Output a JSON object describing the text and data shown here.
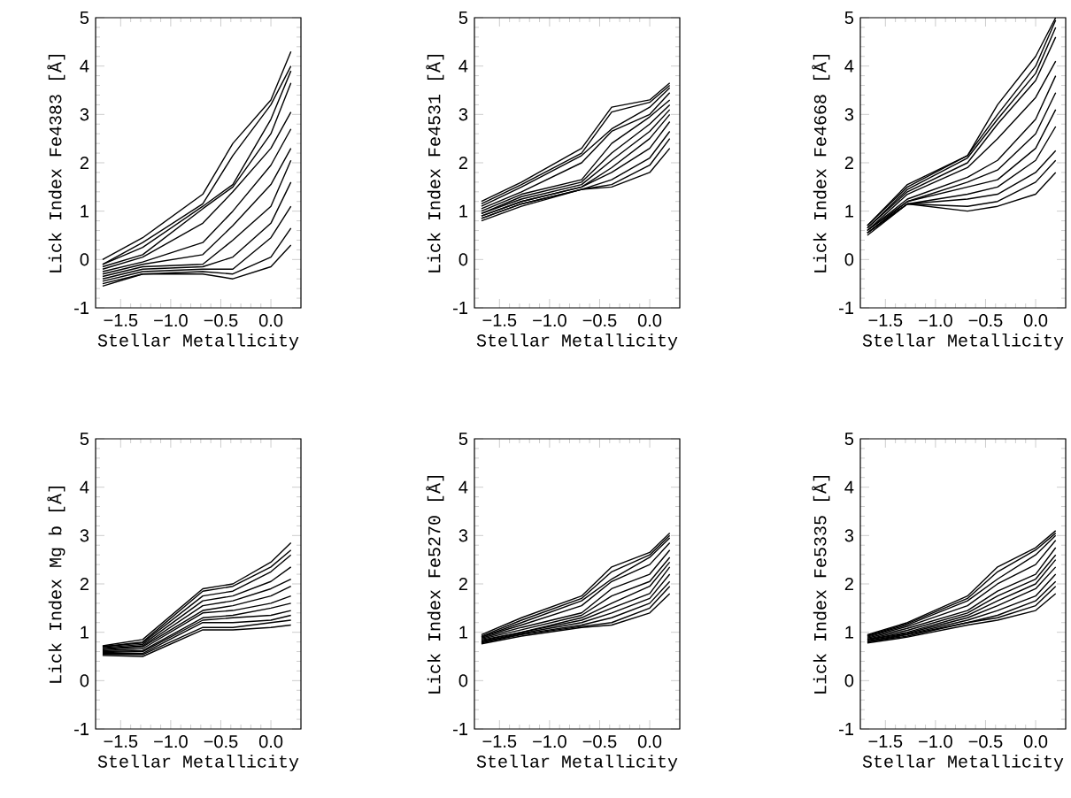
{
  "chart_data": [
    {
      "type": "line",
      "xlabel": "Stellar Metallicity",
      "ylabel": "Lick Index Fe4383 [Å]",
      "x": [
        -1.68,
        -1.28,
        -0.68,
        -0.38,
        0.0,
        0.2
      ],
      "xlim": [
        -1.75,
        0.3
      ],
      "ylim": [
        -1,
        5
      ],
      "xticks": [
        {
          "value": -1.5,
          "label": "−1.5"
        },
        {
          "value": -1.0,
          "label": "−1.0"
        },
        {
          "value": -0.5,
          "label": "−0.5"
        },
        {
          "value": 0.0,
          "label": "0.0"
        }
      ],
      "yticks": [
        -1,
        0,
        1,
        2,
        3,
        4,
        5
      ],
      "marker": "none",
      "line_style": "solid",
      "series": [
        {
          "color": "#000000",
          "values": [
            0.0,
            0.45,
            1.35,
            2.4,
            3.3,
            4.3
          ]
        },
        {
          "color": "#000000",
          "values": [
            -0.1,
            0.35,
            1.15,
            2.15,
            3.2,
            4.0
          ]
        },
        {
          "color": "#000000",
          "values": [
            -0.1,
            0.25,
            1.1,
            1.55,
            2.9,
            3.9
          ]
        },
        {
          "color": "#000000",
          "values": [
            -0.15,
            0.1,
            1.05,
            1.5,
            2.6,
            3.65
          ]
        },
        {
          "color": "#000000",
          "values": [
            -0.2,
            0.05,
            0.75,
            1.4,
            2.3,
            3.05
          ]
        },
        {
          "color": "#000000",
          "values": [
            -0.25,
            -0.05,
            0.35,
            1.0,
            1.95,
            2.7
          ]
        },
        {
          "color": "#000000",
          "values": [
            -0.3,
            -0.1,
            0.1,
            0.7,
            1.55,
            2.3
          ]
        },
        {
          "color": "#000000",
          "values": [
            -0.35,
            -0.15,
            -0.1,
            0.4,
            1.1,
            2.05
          ]
        },
        {
          "color": "#000000",
          "values": [
            -0.4,
            -0.2,
            -0.15,
            0.05,
            0.75,
            1.6
          ]
        },
        {
          "color": "#000000",
          "values": [
            -0.45,
            -0.25,
            -0.2,
            -0.2,
            0.45,
            1.1
          ]
        },
        {
          "color": "#000000",
          "values": [
            -0.5,
            -0.3,
            -0.25,
            -0.3,
            0.05,
            0.65
          ]
        },
        {
          "color": "#000000",
          "values": [
            -0.55,
            -0.3,
            -0.3,
            -0.4,
            -0.15,
            0.3
          ]
        }
      ]
    },
    {
      "type": "line",
      "xlabel": "Stellar Metallicity",
      "ylabel": "Lick Index Fe4531 [Å]",
      "x": [
        -1.68,
        -1.28,
        -0.68,
        -0.38,
        0.0,
        0.2
      ],
      "xlim": [
        -1.75,
        0.3
      ],
      "ylim": [
        -1,
        5
      ],
      "xticks": [
        {
          "value": -1.5,
          "label": "−1.5"
        },
        {
          "value": -1.0,
          "label": "−1.0"
        },
        {
          "value": -0.5,
          "label": "−0.5"
        },
        {
          "value": 0.0,
          "label": "0.0"
        }
      ],
      "yticks": [
        -1,
        0,
        1,
        2,
        3,
        4,
        5
      ],
      "marker": "none",
      "line_style": "solid",
      "series": [
        {
          "color": "#000000",
          "values": [
            1.2,
            1.6,
            2.3,
            3.15,
            3.3,
            3.65
          ]
        },
        {
          "color": "#000000",
          "values": [
            1.15,
            1.55,
            2.2,
            3.05,
            3.25,
            3.6
          ]
        },
        {
          "color": "#000000",
          "values": [
            1.1,
            1.5,
            2.15,
            2.7,
            3.15,
            3.55
          ]
        },
        {
          "color": "#000000",
          "values": [
            1.05,
            1.4,
            2.0,
            2.65,
            3.0,
            3.45
          ]
        },
        {
          "color": "#000000",
          "values": [
            1.0,
            1.35,
            1.65,
            2.4,
            2.95,
            3.3
          ]
        },
        {
          "color": "#000000",
          "values": [
            0.95,
            1.3,
            1.6,
            2.2,
            2.8,
            3.2
          ]
        },
        {
          "color": "#000000",
          "values": [
            0.95,
            1.25,
            1.55,
            2.05,
            2.65,
            3.1
          ]
        },
        {
          "color": "#000000",
          "values": [
            0.9,
            1.2,
            1.5,
            1.9,
            2.5,
            3.0
          ]
        },
        {
          "color": "#000000",
          "values": [
            0.9,
            1.2,
            1.5,
            1.8,
            2.3,
            2.85
          ]
        },
        {
          "color": "#000000",
          "values": [
            0.85,
            1.15,
            1.45,
            1.65,
            2.1,
            2.65
          ]
        },
        {
          "color": "#000000",
          "values": [
            0.85,
            1.15,
            1.45,
            1.55,
            1.95,
            2.5
          ]
        },
        {
          "color": "#000000",
          "values": [
            0.8,
            1.1,
            1.45,
            1.5,
            1.8,
            2.3
          ]
        }
      ]
    },
    {
      "type": "line",
      "xlabel": "Stellar Metallicity",
      "ylabel": "Lick Index Fe4668 [Å]",
      "x": [
        -1.68,
        -1.28,
        -0.68,
        -0.38,
        0.0,
        0.2
      ],
      "xlim": [
        -1.75,
        0.3
      ],
      "ylim": [
        -1,
        5
      ],
      "xticks": [
        {
          "value": -1.5,
          "label": "−1.5"
        },
        {
          "value": -1.0,
          "label": "−1.0"
        },
        {
          "value": -0.5,
          "label": "−0.5"
        },
        {
          "value": 0.0,
          "label": "0.0"
        }
      ],
      "yticks": [
        -1,
        0,
        1,
        2,
        3,
        4,
        5
      ],
      "marker": "none",
      "line_style": "solid",
      "series": [
        {
          "color": "#000000",
          "values": [
            0.7,
            1.55,
            2.15,
            3.2,
            4.2,
            5.0
          ]
        },
        {
          "color": "#000000",
          "values": [
            0.7,
            1.5,
            2.15,
            3.0,
            4.0,
            4.95
          ]
        },
        {
          "color": "#000000",
          "values": [
            0.65,
            1.45,
            2.1,
            2.9,
            3.85,
            4.8
          ]
        },
        {
          "color": "#000000",
          "values": [
            0.65,
            1.4,
            2.0,
            2.8,
            3.7,
            4.6
          ]
        },
        {
          "color": "#000000",
          "values": [
            0.6,
            1.35,
            1.9,
            2.5,
            3.35,
            4.1
          ]
        },
        {
          "color": "#000000",
          "values": [
            0.6,
            1.25,
            1.7,
            2.05,
            2.9,
            3.8
          ]
        },
        {
          "color": "#000000",
          "values": [
            0.6,
            1.2,
            1.6,
            1.85,
            2.6,
            3.45
          ]
        },
        {
          "color": "#000000",
          "values": [
            0.55,
            1.2,
            1.5,
            1.65,
            2.3,
            3.1
          ]
        },
        {
          "color": "#000000",
          "values": [
            0.55,
            1.15,
            1.35,
            1.5,
            2.05,
            2.75
          ]
        },
        {
          "color": "#000000",
          "values": [
            0.55,
            1.15,
            1.25,
            1.35,
            1.8,
            2.25
          ]
        },
        {
          "color": "#000000",
          "values": [
            0.55,
            1.15,
            1.1,
            1.2,
            1.6,
            2.05
          ]
        },
        {
          "color": "#000000",
          "values": [
            0.5,
            1.15,
            1.0,
            1.1,
            1.35,
            1.8
          ]
        }
      ]
    },
    {
      "type": "line",
      "xlabel": "Stellar Metallicity",
      "ylabel": "Lick Index Mg b [Å]",
      "x": [
        -1.68,
        -1.28,
        -0.68,
        -0.38,
        0.0,
        0.2
      ],
      "xlim": [
        -1.75,
        0.3
      ],
      "ylim": [
        -1,
        5
      ],
      "xticks": [
        {
          "value": -1.5,
          "label": "−1.5"
        },
        {
          "value": -1.0,
          "label": "−1.0"
        },
        {
          "value": -0.5,
          "label": "−0.5"
        },
        {
          "value": 0.0,
          "label": "0.0"
        }
      ],
      "yticks": [
        -1,
        0,
        1,
        2,
        3,
        4,
        5
      ],
      "marker": "none",
      "line_style": "solid",
      "series": [
        {
          "color": "#000000",
          "values": [
            0.72,
            0.85,
            1.9,
            2.0,
            2.45,
            2.85
          ]
        },
        {
          "color": "#000000",
          "values": [
            0.7,
            0.8,
            1.85,
            1.95,
            2.35,
            2.7
          ]
        },
        {
          "color": "#000000",
          "values": [
            0.7,
            0.78,
            1.75,
            1.85,
            2.25,
            2.6
          ]
        },
        {
          "color": "#000000",
          "values": [
            0.68,
            0.75,
            1.65,
            1.75,
            2.05,
            2.35
          ]
        },
        {
          "color": "#000000",
          "values": [
            0.66,
            0.72,
            1.55,
            1.65,
            1.9,
            2.1
          ]
        },
        {
          "color": "#000000",
          "values": [
            0.64,
            0.7,
            1.45,
            1.55,
            1.75,
            1.95
          ]
        },
        {
          "color": "#000000",
          "values": [
            0.62,
            0.66,
            1.4,
            1.45,
            1.6,
            1.75
          ]
        },
        {
          "color": "#000000",
          "values": [
            0.6,
            0.62,
            1.3,
            1.35,
            1.5,
            1.6
          ]
        },
        {
          "color": "#000000",
          "values": [
            0.58,
            0.6,
            1.25,
            1.3,
            1.35,
            1.45
          ]
        },
        {
          "color": "#000000",
          "values": [
            0.56,
            0.56,
            1.2,
            1.2,
            1.25,
            1.35
          ]
        },
        {
          "color": "#000000",
          "values": [
            0.54,
            0.54,
            1.1,
            1.1,
            1.2,
            1.25
          ]
        },
        {
          "color": "#000000",
          "values": [
            0.52,
            0.5,
            1.05,
            1.05,
            1.1,
            1.15
          ]
        }
      ]
    },
    {
      "type": "line",
      "xlabel": "Stellar Metallicity",
      "ylabel": "Lick Index Fe5270 [Å]",
      "x": [
        -1.68,
        -1.28,
        -0.68,
        -0.38,
        0.0,
        0.2
      ],
      "xlim": [
        -1.75,
        0.3
      ],
      "ylim": [
        -1,
        5
      ],
      "xticks": [
        {
          "value": -1.5,
          "label": "−1.5"
        },
        {
          "value": -1.0,
          "label": "−1.0"
        },
        {
          "value": -0.5,
          "label": "−0.5"
        },
        {
          "value": 0.0,
          "label": "0.0"
        }
      ],
      "yticks": [
        -1,
        0,
        1,
        2,
        3,
        4,
        5
      ],
      "marker": "none",
      "line_style": "solid",
      "series": [
        {
          "color": "#000000",
          "values": [
            0.95,
            1.3,
            1.75,
            2.35,
            2.65,
            3.05
          ]
        },
        {
          "color": "#000000",
          "values": [
            0.92,
            1.25,
            1.7,
            2.25,
            2.6,
            3.0
          ]
        },
        {
          "color": "#000000",
          "values": [
            0.9,
            1.2,
            1.65,
            2.1,
            2.55,
            2.95
          ]
        },
        {
          "color": "#000000",
          "values": [
            0.9,
            1.15,
            1.55,
            2.05,
            2.4,
            2.85
          ]
        },
        {
          "color": "#000000",
          "values": [
            0.88,
            1.1,
            1.4,
            1.9,
            2.2,
            2.7
          ]
        },
        {
          "color": "#000000",
          "values": [
            0.86,
            1.05,
            1.35,
            1.75,
            2.05,
            2.55
          ]
        },
        {
          "color": "#000000",
          "values": [
            0.84,
            1.0,
            1.3,
            1.6,
            1.95,
            2.45
          ]
        },
        {
          "color": "#000000",
          "values": [
            0.82,
            1.0,
            1.25,
            1.5,
            1.8,
            2.35
          ]
        },
        {
          "color": "#000000",
          "values": [
            0.8,
            0.98,
            1.2,
            1.4,
            1.7,
            2.2
          ]
        },
        {
          "color": "#000000",
          "values": [
            0.8,
            0.96,
            1.15,
            1.3,
            1.6,
            2.05
          ]
        },
        {
          "color": "#000000",
          "values": [
            0.78,
            0.95,
            1.12,
            1.2,
            1.5,
            1.95
          ]
        },
        {
          "color": "#000000",
          "values": [
            0.76,
            0.92,
            1.1,
            1.15,
            1.4,
            1.8
          ]
        }
      ]
    },
    {
      "type": "line",
      "xlabel": "Stellar Metallicity",
      "ylabel": "Lick Index Fe5335 [Å]",
      "x": [
        -1.68,
        -1.28,
        -0.68,
        -0.38,
        0.0,
        0.2
      ],
      "xlim": [
        -1.75,
        0.3
      ],
      "ylim": [
        -1,
        5
      ],
      "xticks": [
        {
          "value": -1.5,
          "label": "−1.5"
        },
        {
          "value": -1.0,
          "label": "−1.0"
        },
        {
          "value": -0.5,
          "label": "−0.5"
        },
        {
          "value": 0.0,
          "label": "0.0"
        }
      ],
      "yticks": [
        -1,
        0,
        1,
        2,
        3,
        4,
        5
      ],
      "marker": "none",
      "line_style": "solid",
      "series": [
        {
          "color": "#000000",
          "values": [
            0.95,
            1.2,
            1.75,
            2.35,
            2.75,
            3.1
          ]
        },
        {
          "color": "#000000",
          "values": [
            0.93,
            1.18,
            1.7,
            2.25,
            2.7,
            3.05
          ]
        },
        {
          "color": "#000000",
          "values": [
            0.92,
            1.15,
            1.65,
            2.1,
            2.6,
            3.0
          ]
        },
        {
          "color": "#000000",
          "values": [
            0.9,
            1.12,
            1.55,
            2.0,
            2.4,
            2.9
          ]
        },
        {
          "color": "#000000",
          "values": [
            0.88,
            1.08,
            1.45,
            1.85,
            2.2,
            2.75
          ]
        },
        {
          "color": "#000000",
          "values": [
            0.86,
            1.04,
            1.4,
            1.75,
            2.1,
            2.6
          ]
        },
        {
          "color": "#000000",
          "values": [
            0.85,
            1.0,
            1.35,
            1.65,
            2.0,
            2.5
          ]
        },
        {
          "color": "#000000",
          "values": [
            0.84,
            0.98,
            1.3,
            1.55,
            1.9,
            2.35
          ]
        },
        {
          "color": "#000000",
          "values": [
            0.82,
            0.96,
            1.25,
            1.45,
            1.75,
            2.2
          ]
        },
        {
          "color": "#000000",
          "values": [
            0.8,
            0.95,
            1.2,
            1.35,
            1.65,
            2.05
          ]
        },
        {
          "color": "#000000",
          "values": [
            0.8,
            0.92,
            1.2,
            1.3,
            1.55,
            1.95
          ]
        },
        {
          "color": "#000000",
          "values": [
            0.78,
            0.9,
            1.15,
            1.25,
            1.45,
            1.8
          ]
        }
      ]
    }
  ]
}
